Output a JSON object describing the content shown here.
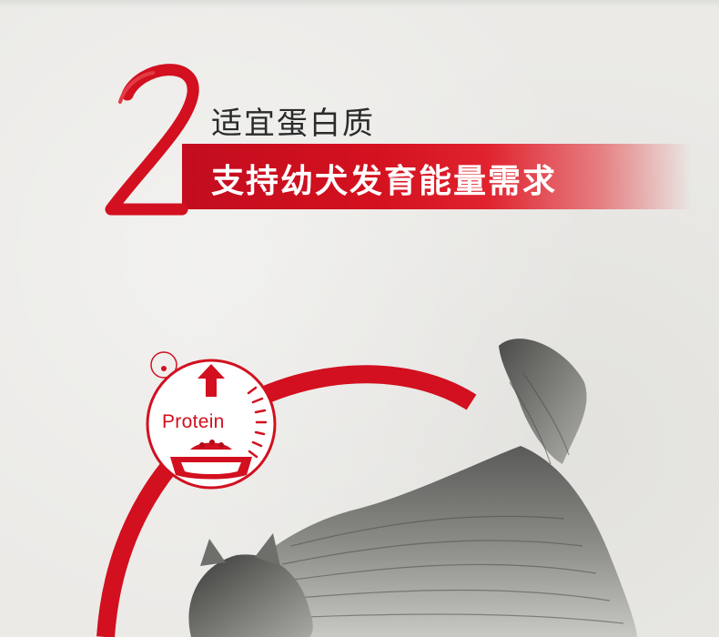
{
  "section": {
    "number": "2",
    "subtitle": "适宜蛋白质",
    "headline": "支持幼犬发育能量需求"
  },
  "badge": {
    "label": "Protein",
    "icon": "protein-up-arrow-bowl-icon"
  },
  "colors": {
    "brand_red": "#d2101f",
    "ribbon_red": "#c20d1f",
    "background": "#ebeae7",
    "text_dark": "#2b2b2b"
  }
}
